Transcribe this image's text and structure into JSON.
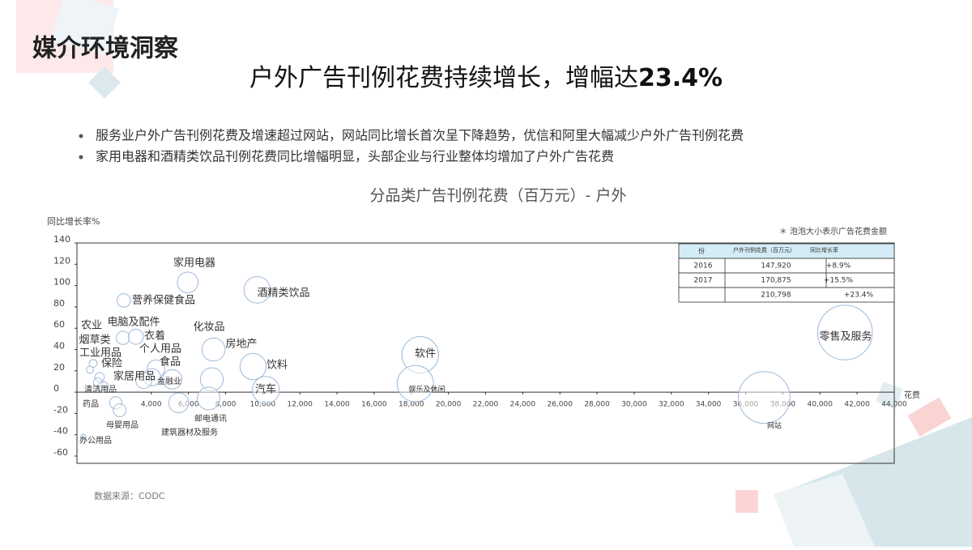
{
  "header": "媒介环境洞察",
  "headline": {
    "text": "户外广告刊例花费持续增长，增幅达",
    "highlight": "23.4%"
  },
  "bullets": [
    "服务业户外广告刊例花费及增速超过网站，网站同比增长首次呈下降趋势，优信和阿里大幅减少户外广告刊例花费",
    "家用电器和酒精类饮品刊例花费同比增幅明显，头部企业与行业整体均增加了户外广告花费"
  ],
  "chart_data": {
    "type": "scatter",
    "title": "分品类广告刊例花费（百万元）- 户外",
    "y_label": "同比增长率%",
    "x_label": "花费",
    "note": "＊ 泡泡大小表示广告花费金额",
    "categories": [
      "家用电器",
      "酒精类饮品",
      "营养保健食品",
      "电脑及配件",
      "衣着",
      "化妆品",
      "房地产",
      "饮料",
      "汽车",
      "软件",
      "娱乐及休闲",
      "零售及服务",
      "网站",
      "农业",
      "烟草类",
      "工业用品",
      "保险",
      "个人用品",
      "食品",
      "家居用品",
      "金融业",
      "清洁用品",
      "药品",
      "母婴用品",
      "办公用品",
      "邮电通讯",
      "建筑器材及服务"
    ],
    "x": [
      5960,
      9700,
      2520,
      2480,
      3170,
      7350,
      7260,
      9480,
      10170,
      18480,
      18220,
      41350,
      37000,
      700,
      870,
      1220,
      1130,
      4260,
      4040,
      3600,
      5130,
      1430,
      2090,
      2300,
      350,
      7090,
      5480
    ],
    "values": [
      103,
      96,
      86,
      51,
      52,
      40,
      12,
      24,
      2,
      35,
      8,
      56,
      -5,
      21,
      27,
      14,
      9,
      22,
      14,
      11,
      12,
      5,
      -10,
      -17,
      -42,
      -6,
      -10
    ],
    "color": "#9dbad9",
    "xlim": [
      0,
      44000
    ],
    "ylim": [
      -60,
      140
    ],
    "xticks": [
      {
        "value": 4000,
        "label": "4,000"
      },
      {
        "value": 6000,
        "label": "6,000"
      },
      {
        "value": 8000,
        "label": "8,000"
      },
      {
        "value": 10000,
        "label": "10,000"
      },
      {
        "value": 12000,
        "label": "12,000"
      },
      {
        "value": 14000,
        "label": "14,000"
      },
      {
        "value": 16000,
        "label": "16,000"
      },
      {
        "value": 18000,
        "label": "18,000"
      },
      {
        "value": 20000,
        "label": "20,000"
      },
      {
        "value": 22000,
        "label": "22,000"
      },
      {
        "value": 24000,
        "label": "24,000"
      },
      {
        "value": 26000,
        "label": "26,000"
      },
      {
        "value": 28000,
        "label": "28,000"
      },
      {
        "value": 30000,
        "label": "30,000"
      },
      {
        "value": 32000,
        "label": "32,000"
      },
      {
        "value": 34000,
        "label": "34,000"
      },
      {
        "value": 36000,
        "label": "36,000"
      },
      {
        "value": 38000,
        "label": "38,000"
      },
      {
        "value": 40000,
        "label": "40,000"
      },
      {
        "value": 42000,
        "label": "42,000"
      },
      {
        "value": 44000,
        "label": "44,000"
      }
    ],
    "yticks": [
      140,
      120,
      100,
      80,
      60,
      40,
      20,
      0,
      -20,
      -40,
      -60
    ],
    "table": {
      "columns": [
        "份",
        "户外刊例花费（百万元）",
        "同比增长率"
      ],
      "rows": [
        [
          "2016",
          "147,920",
          "+8.9%"
        ],
        [
          "2017",
          "170,875",
          "+15.5%"
        ],
        [
          null,
          "210,798",
          "+23.4%"
        ]
      ]
    }
  },
  "source": "数据来源：CODC"
}
